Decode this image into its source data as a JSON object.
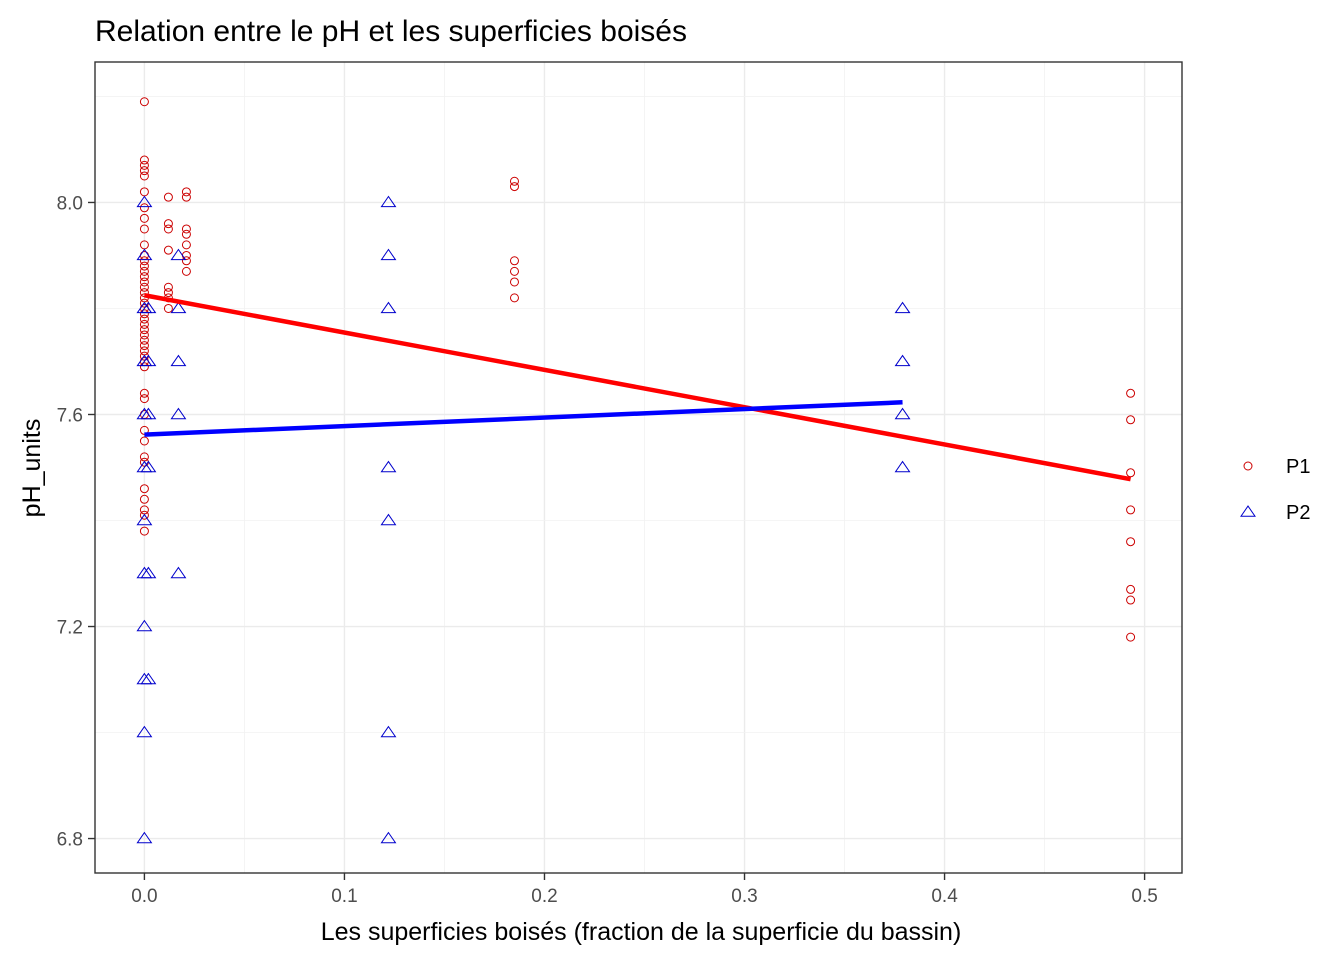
{
  "chart_data": {
    "type": "scatter",
    "title": "Relation entre le pH et les superficies boisés",
    "xlabel": "Les superficies boisés (fraction de la superficie du bassin)",
    "ylabel": "pH_units",
    "xlim": [
      -0.0247,
      0.5187
    ],
    "ylim": [
      6.735,
      8.265
    ],
    "x_ticks": [
      0.0,
      0.1,
      0.2,
      0.3,
      0.4,
      0.5
    ],
    "x_tick_labels": [
      "0.0",
      "0.1",
      "0.2",
      "0.3",
      "0.4",
      "0.5"
    ],
    "y_ticks": [
      6.8,
      7.2,
      7.6,
      8.0
    ],
    "y_tick_labels": [
      "6.8",
      "7.2",
      "7.6",
      "8.0"
    ],
    "grid": true,
    "legend_position": "right",
    "series": [
      {
        "name": "P1",
        "marker": "circle",
        "color": "#cc0000",
        "points": [
          [
            0.0,
            8.19
          ],
          [
            0.0,
            8.08
          ],
          [
            0.0,
            8.07
          ],
          [
            0.0,
            8.06
          ],
          [
            0.0,
            8.05
          ],
          [
            0.0,
            8.02
          ],
          [
            0.0,
            7.99
          ],
          [
            0.0,
            7.97
          ],
          [
            0.0,
            7.95
          ],
          [
            0.0,
            7.92
          ],
          [
            0.0,
            7.9
          ],
          [
            0.0,
            7.89
          ],
          [
            0.0,
            7.88
          ],
          [
            0.0,
            7.87
          ],
          [
            0.0,
            7.86
          ],
          [
            0.0,
            7.85
          ],
          [
            0.0,
            7.84
          ],
          [
            0.0,
            7.83
          ],
          [
            0.0,
            7.82
          ],
          [
            0.0,
            7.81
          ],
          [
            0.0,
            7.8
          ],
          [
            0.0,
            7.79
          ],
          [
            0.0,
            7.78
          ],
          [
            0.0,
            7.77
          ],
          [
            0.0,
            7.76
          ],
          [
            0.0,
            7.75
          ],
          [
            0.0,
            7.74
          ],
          [
            0.0,
            7.73
          ],
          [
            0.0,
            7.72
          ],
          [
            0.0,
            7.71
          ],
          [
            0.0,
            7.7
          ],
          [
            0.0,
            7.69
          ],
          [
            0.0,
            7.64
          ],
          [
            0.0,
            7.63
          ],
          [
            0.0,
            7.6
          ],
          [
            0.0,
            7.57
          ],
          [
            0.0,
            7.55
          ],
          [
            0.0,
            7.52
          ],
          [
            0.0,
            7.51
          ],
          [
            0.0,
            7.46
          ],
          [
            0.0,
            7.44
          ],
          [
            0.0,
            7.42
          ],
          [
            0.0,
            7.41
          ],
          [
            0.0,
            7.38
          ],
          [
            0.012,
            8.01
          ],
          [
            0.012,
            7.96
          ],
          [
            0.012,
            7.95
          ],
          [
            0.012,
            7.91
          ],
          [
            0.012,
            7.84
          ],
          [
            0.012,
            7.83
          ],
          [
            0.012,
            7.82
          ],
          [
            0.012,
            7.8
          ],
          [
            0.021,
            8.02
          ],
          [
            0.021,
            8.01
          ],
          [
            0.021,
            7.95
          ],
          [
            0.021,
            7.94
          ],
          [
            0.021,
            7.92
          ],
          [
            0.021,
            7.9
          ],
          [
            0.021,
            7.89
          ],
          [
            0.021,
            7.87
          ],
          [
            0.185,
            8.04
          ],
          [
            0.185,
            8.03
          ],
          [
            0.185,
            7.89
          ],
          [
            0.185,
            7.87
          ],
          [
            0.185,
            7.85
          ],
          [
            0.185,
            7.82
          ],
          [
            0.493,
            7.64
          ],
          [
            0.493,
            7.59
          ],
          [
            0.493,
            7.49
          ],
          [
            0.493,
            7.42
          ],
          [
            0.493,
            7.36
          ],
          [
            0.493,
            7.27
          ],
          [
            0.493,
            7.25
          ],
          [
            0.493,
            7.18
          ]
        ],
        "fit": {
          "x": [
            0.0,
            0.493
          ],
          "y": [
            7.825,
            7.478
          ]
        }
      },
      {
        "name": "P2",
        "marker": "triangle",
        "color": "#0000cc",
        "points": [
          [
            0.0,
            8.0
          ],
          [
            0.0,
            7.9
          ],
          [
            0.0,
            7.8
          ],
          [
            0.0,
            7.7
          ],
          [
            0.0,
            7.6
          ],
          [
            0.0,
            7.5
          ],
          [
            0.0,
            7.4
          ],
          [
            0.0,
            7.3
          ],
          [
            0.0,
            7.2
          ],
          [
            0.0,
            7.1
          ],
          [
            0.0,
            7.0
          ],
          [
            0.0,
            6.8
          ],
          [
            0.002,
            7.8
          ],
          [
            0.002,
            7.7
          ],
          [
            0.002,
            7.6
          ],
          [
            0.002,
            7.5
          ],
          [
            0.002,
            7.3
          ],
          [
            0.002,
            7.1
          ],
          [
            0.017,
            7.9
          ],
          [
            0.017,
            7.8
          ],
          [
            0.017,
            7.7
          ],
          [
            0.017,
            7.6
          ],
          [
            0.017,
            7.3
          ],
          [
            0.122,
            8.0
          ],
          [
            0.122,
            7.9
          ],
          [
            0.122,
            7.8
          ],
          [
            0.122,
            7.5
          ],
          [
            0.122,
            7.4
          ],
          [
            0.122,
            7.0
          ],
          [
            0.122,
            6.8
          ],
          [
            0.379,
            7.8
          ],
          [
            0.379,
            7.7
          ],
          [
            0.379,
            7.6
          ],
          [
            0.379,
            7.5
          ]
        ],
        "fit": {
          "x": [
            0.0,
            0.379
          ],
          "y": [
            7.562,
            7.623
          ]
        }
      }
    ]
  }
}
